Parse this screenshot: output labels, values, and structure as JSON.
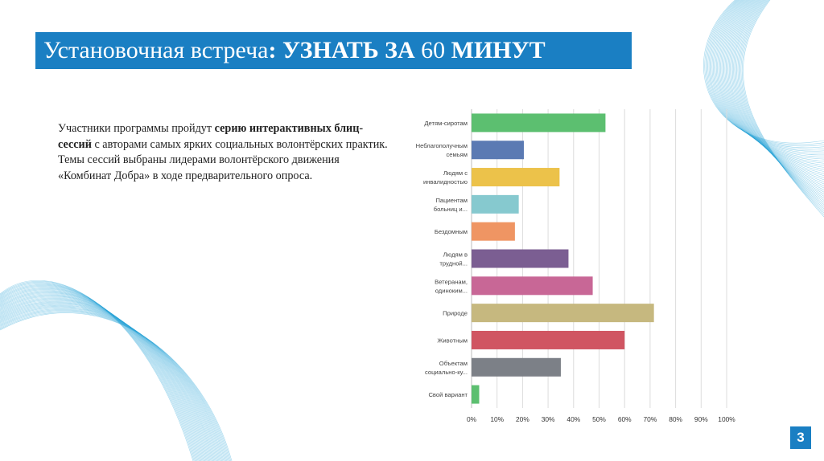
{
  "slide": {
    "title_part1": "Установочная встреча",
    "title_part2": ": УЗНАТЬ ЗА ",
    "title_part3": "60",
    "title_part4": " МИНУТ",
    "intro": {
      "p1_a": "Участники программы пройдут ",
      "p1_b": "серию интерактивных блиц-сессий",
      "p1_c": " с авторами самых ярких социальных волонтёрских практик.",
      "p2": "Темы сессий выбраны лидерами волонтёрского движения «Комбинат Добра» в ходе предварительного опроса."
    },
    "page_number": "3",
    "accent_color": "#1a7fc3"
  },
  "chart_data": {
    "type": "bar",
    "orientation": "horizontal",
    "categories": [
      [
        "Детям-сиротам"
      ],
      [
        "Неблагополучным",
        "семьям"
      ],
      [
        "Людям с",
        "инвалидностью"
      ],
      [
        "Пациентам",
        "больниц и..."
      ],
      [
        "Бездомным"
      ],
      [
        "Людям в",
        "трудной..."
      ],
      [
        "Ветеранам,",
        "одиноким..."
      ],
      [
        "Природе"
      ],
      [
        "Животным"
      ],
      [
        "Объектам",
        "социально-ку..."
      ],
      [
        "Свой вариант"
      ]
    ],
    "values": [
      52.5,
      20.5,
      34.5,
      18.5,
      17,
      38,
      47.5,
      71.5,
      60,
      35,
      3
    ],
    "colors": [
      "#5cbf70",
      "#5b7ab3",
      "#ecc24a",
      "#86c9cf",
      "#ef9563",
      "#7b5e92",
      "#c86796",
      "#c6b87f",
      "#d05562",
      "#7c8087",
      "#5cbf70"
    ],
    "xlim": [
      0,
      100
    ],
    "x_ticks": [
      "0%",
      "10%",
      "20%",
      "30%",
      "40%",
      "50%",
      "60%",
      "70%",
      "80%",
      "90%",
      "100%"
    ],
    "grid": true
  }
}
